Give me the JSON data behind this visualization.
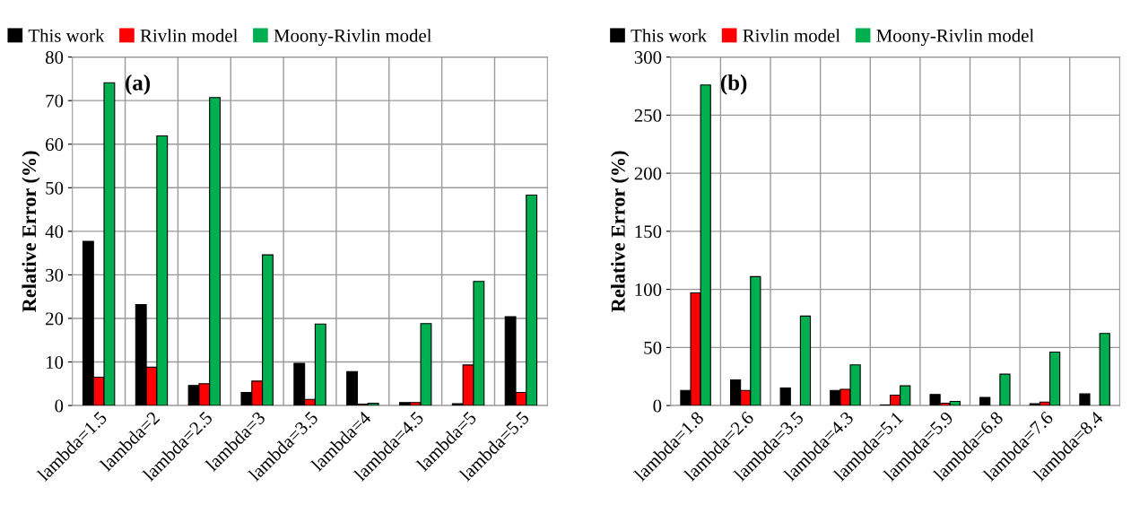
{
  "chart_data": [
    {
      "type": "bar",
      "ylabel": "Relative Error (%)",
      "annotations": [
        "(a)"
      ],
      "categories": [
        "lambda=1.5",
        "lambda=2",
        "lambda=2.5",
        "lambda=3",
        "lambda=3.5",
        "lambda=4",
        "lambda=4.5",
        "lambda=5",
        "lambda=5.5"
      ],
      "series": [
        {
          "name": "This work",
          "color": "#000000",
          "values": [
            37.7,
            23.2,
            4.6,
            3.0,
            9.7,
            7.8,
            0.7,
            0.4,
            20.4
          ]
        },
        {
          "name": "Rivlin model",
          "color": "#ff0000",
          "values": [
            6.5,
            8.8,
            5.0,
            5.6,
            1.4,
            0.3,
            0.7,
            9.3,
            3.0
          ]
        },
        {
          "name": "Moony-Rivlin model",
          "color": "#00b050",
          "values": [
            74.1,
            61.9,
            70.7,
            34.6,
            18.7,
            0.5,
            18.8,
            28.5,
            48.3
          ]
        }
      ],
      "ylim": [
        0,
        80
      ],
      "yticks": [
        0,
        10,
        20,
        30,
        40,
        50,
        60,
        70,
        80
      ],
      "grid": true,
      "legend": "top"
    },
    {
      "type": "bar",
      "ylabel": "Relative Error (%)",
      "annotations": [
        "(b)"
      ],
      "categories": [
        "lambda=1.8",
        "lambda=2.6",
        "lambda=3.5",
        "lambda=4.3",
        "lambda=5.1",
        "lambda=5.9",
        "lambda=6.8",
        "lambda=7.6",
        "lambda=8.4"
      ],
      "series": [
        {
          "name": "This work",
          "color": "#000000",
          "values": [
            13,
            22,
            15,
            13,
            0.5,
            9.5,
            7,
            1.5,
            10
          ]
        },
        {
          "name": "Rivlin model",
          "color": "#ff0000",
          "values": [
            97,
            13,
            null,
            14,
            9,
            2,
            null,
            3,
            null
          ]
        },
        {
          "name": "Moony-Rivlin model",
          "color": "#00b050",
          "values": [
            276,
            111,
            77,
            35,
            17,
            3.5,
            27,
            46,
            62
          ]
        }
      ],
      "ylim": [
        0,
        300
      ],
      "yticks": [
        0,
        50,
        100,
        150,
        200,
        250,
        300
      ],
      "grid": true,
      "legend": "top"
    }
  ]
}
